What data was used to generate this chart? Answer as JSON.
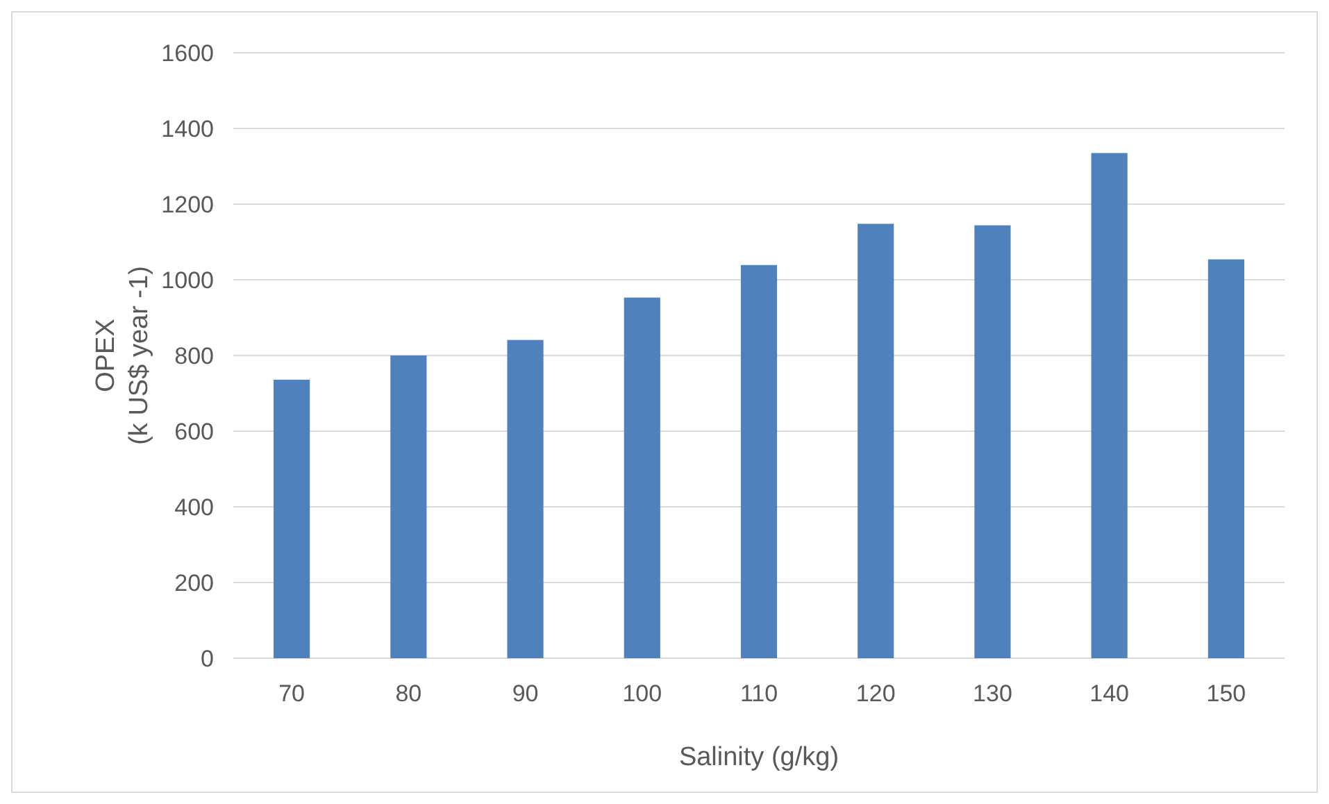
{
  "chart_data": {
    "type": "bar",
    "xlabel": "Salinity (g/kg)",
    "ylabel": "OPEX\n(k US$ year -1)",
    "categories": [
      "70",
      "80",
      "90",
      "100",
      "110",
      "120",
      "130",
      "140",
      "150"
    ],
    "values": [
      736,
      800,
      841,
      953,
      1039,
      1148,
      1144,
      1335,
      1054
    ],
    "color": "#4f81bd",
    "ylim": [
      0,
      1600
    ],
    "yticks": [
      0,
      200,
      400,
      600,
      800,
      1000,
      1200,
      1400,
      1600
    ],
    "grid": "y"
  }
}
